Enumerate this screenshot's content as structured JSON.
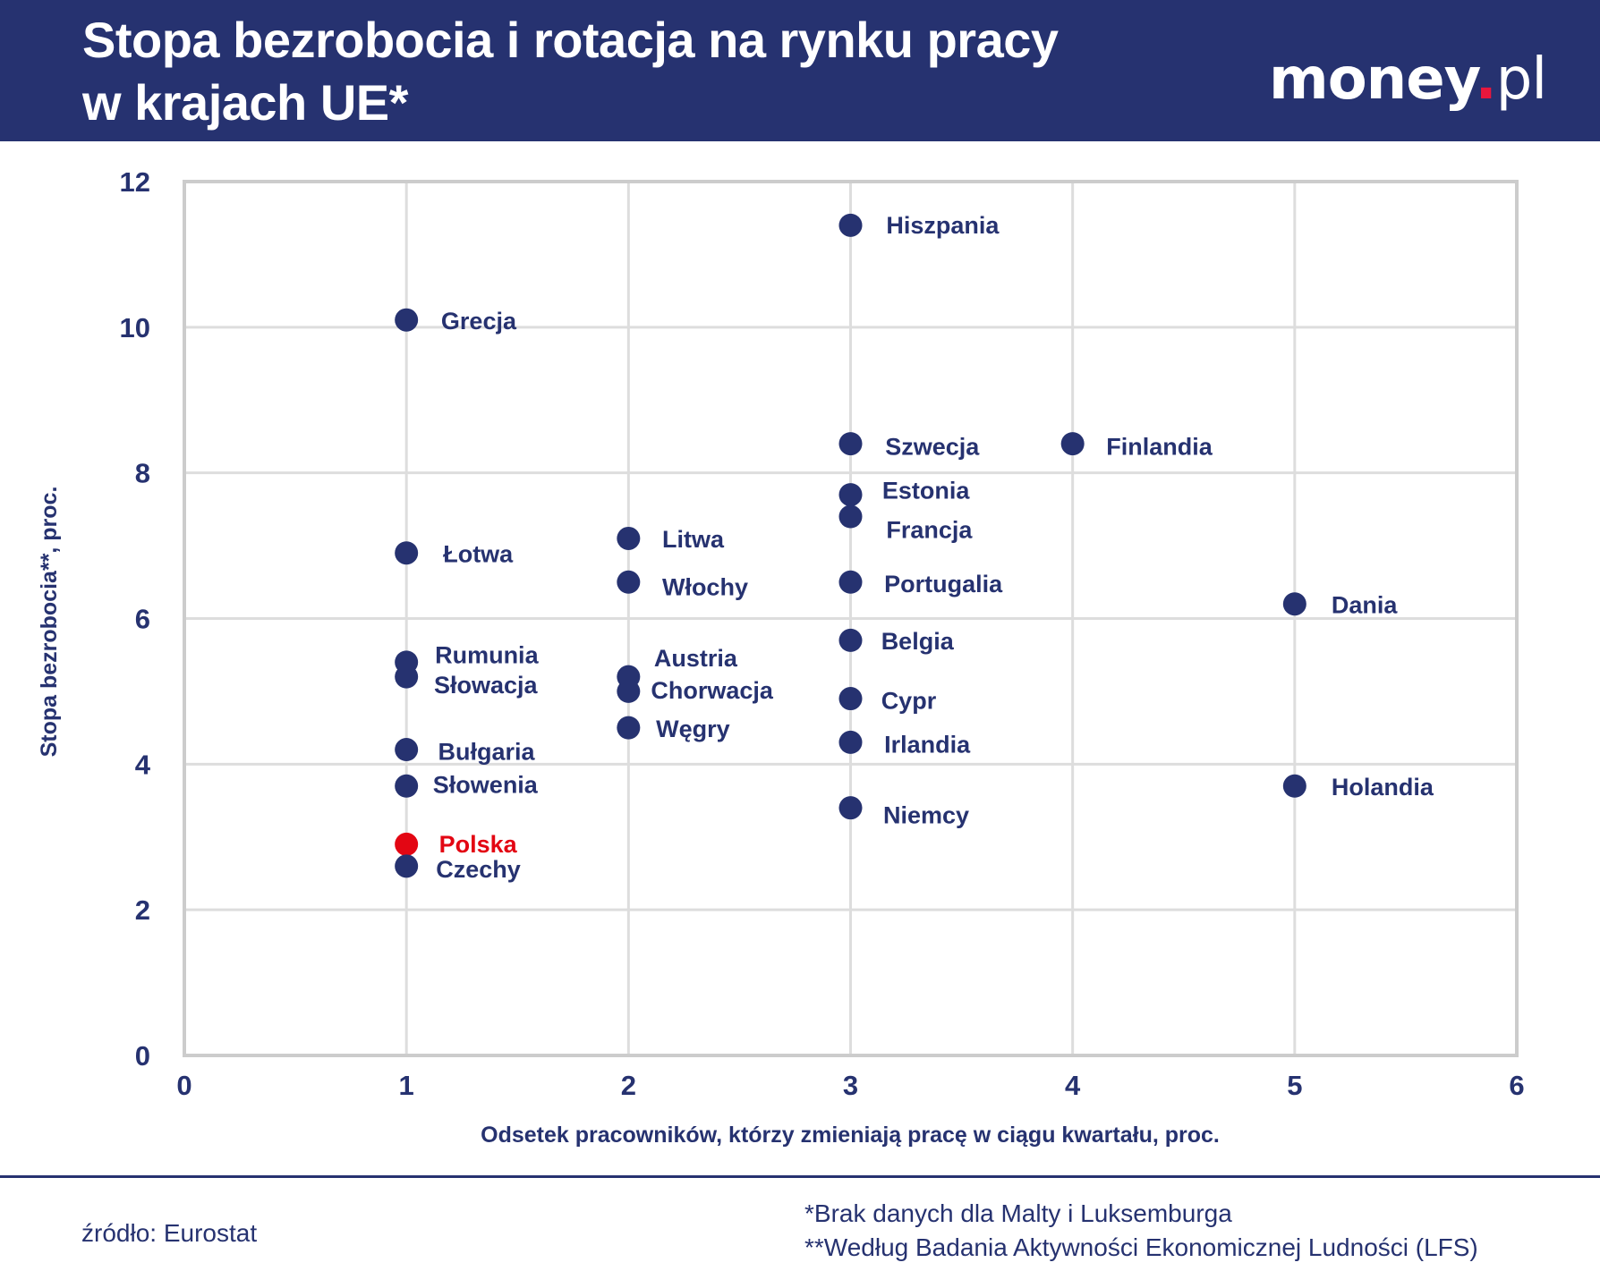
{
  "header": {
    "title_line1": "Stopa bezrobocia i rotacja na rynku pracy",
    "title_line2": "w krajach UE*",
    "logo": "money.pl"
  },
  "colors": {
    "navy": "#263270",
    "highlight": "#e30613",
    "grid": "#dddddd",
    "frame": "#cccccc",
    "logo_dot": "#e8173d"
  },
  "chart_data": {
    "type": "scatter",
    "xlabel": "Odsetek pracowników, którzy zmieniają pracę w ciągu kwartału, proc.",
    "ylabel": "Stopa bezrobocia**, proc.",
    "xlim": [
      0,
      6
    ],
    "ylim": [
      0,
      12
    ],
    "xticks": [
      "0",
      "1",
      "2",
      "3",
      "4",
      "5",
      "6"
    ],
    "yticks": [
      "0",
      "2",
      "4",
      "6",
      "8",
      "10",
      "12"
    ],
    "grid": true,
    "points": [
      {
        "label": "Hiszpania",
        "x": 3,
        "y": 11.4
      },
      {
        "label": "Grecja",
        "x": 1,
        "y": 10.1
      },
      {
        "label": "Szwecja",
        "x": 3,
        "y": 8.4
      },
      {
        "label": "Finlandia",
        "x": 4,
        "y": 8.4
      },
      {
        "label": "Estonia",
        "x": 3,
        "y": 7.7
      },
      {
        "label": "Francja",
        "x": 3,
        "y": 7.4
      },
      {
        "label": "Łotwa",
        "x": 1,
        "y": 6.9
      },
      {
        "label": "Litwa",
        "x": 2,
        "y": 7.1
      },
      {
        "label": "Włochy",
        "x": 2,
        "y": 6.5
      },
      {
        "label": "Portugalia",
        "x": 3,
        "y": 6.5
      },
      {
        "label": "Dania",
        "x": 5,
        "y": 6.2
      },
      {
        "label": "Belgia",
        "x": 3,
        "y": 5.7
      },
      {
        "label": "Rumunia",
        "x": 1,
        "y": 5.4
      },
      {
        "label": "Słowacja",
        "x": 1,
        "y": 5.2
      },
      {
        "label": "Austria",
        "x": 2,
        "y": 5.2
      },
      {
        "label": "Chorwacja",
        "x": 2,
        "y": 5.0
      },
      {
        "label": "Cypr",
        "x": 3,
        "y": 4.9
      },
      {
        "label": "Węgry",
        "x": 2,
        "y": 4.5
      },
      {
        "label": "Irlandia",
        "x": 3,
        "y": 4.3
      },
      {
        "label": "Bułgaria",
        "x": 1,
        "y": 4.2
      },
      {
        "label": "Słowenia",
        "x": 1,
        "y": 3.7
      },
      {
        "label": "Holandia",
        "x": 5,
        "y": 3.7
      },
      {
        "label": "Niemcy",
        "x": 3,
        "y": 3.4
      },
      {
        "label": "Polska",
        "x": 1,
        "y": 2.9,
        "highlight": true
      },
      {
        "label": "Czechy",
        "x": 1,
        "y": 2.6
      }
    ]
  },
  "footer": {
    "source": "źródło: Eurostat",
    "note1": "*Brak danych dla Malty i Luksemburga",
    "note2": "**Według Badania Aktywności Ekonomicznej Ludności (LFS)"
  }
}
